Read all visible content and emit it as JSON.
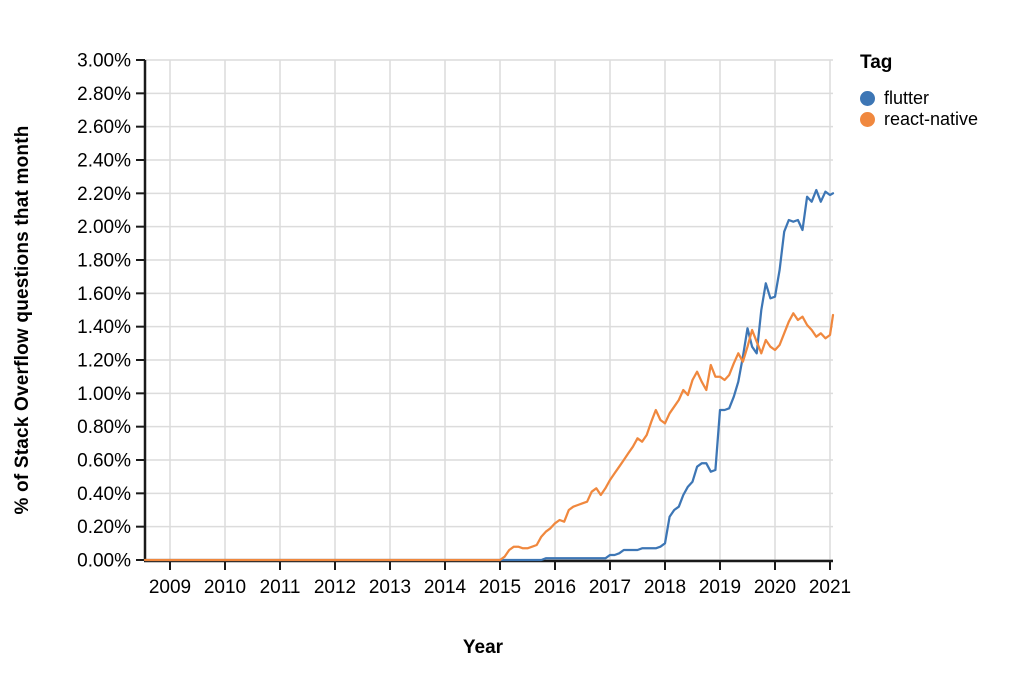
{
  "chart_data": {
    "type": "line",
    "xlabel": "Year",
    "ylabel": "% of Stack Overflow questions that month",
    "ylim": [
      0,
      3
    ],
    "grid": true,
    "x_tick_years": [
      "2009",
      "2010",
      "2011",
      "2012",
      "2013",
      "2014",
      "2015",
      "2016",
      "2017",
      "2018",
      "2019",
      "2020",
      "2021"
    ],
    "y_ticks": [
      "0.00%",
      "0.20%",
      "0.40%",
      "0.60%",
      "0.80%",
      "1.00%",
      "1.20%",
      "1.40%",
      "1.60%",
      "1.80%",
      "2.00%",
      "2.20%",
      "2.40%",
      "2.60%",
      "2.80%",
      "3.00%"
    ],
    "x_start_month": "2008-07",
    "x_months_per_point": 1,
    "legend": {
      "title": "Tag",
      "position": "right",
      "entries": [
        {
          "label": "flutter",
          "color": "#3d76b5"
        },
        {
          "label": "react-native",
          "color": "#f0883e"
        }
      ]
    },
    "colors": {
      "grid": "#dcdcdc",
      "axis": "#1a1a1a",
      "text": "#000000"
    },
    "series": [
      {
        "name": "flutter",
        "color": "#3d76b5",
        "start_month": "2008-07",
        "leading_zero_months": 88,
        "monthly_percent": [
          0.01,
          0.01,
          0.01,
          0.01,
          0.01,
          0.01,
          0.01,
          0.01,
          0.01,
          0.01,
          0.01,
          0.01,
          0.01,
          0.01,
          0.03,
          0.03,
          0.04,
          0.06,
          0.06,
          0.06,
          0.06,
          0.07,
          0.07,
          0.07,
          0.07,
          0.08,
          0.1,
          0.26,
          0.3,
          0.32,
          0.39,
          0.44,
          0.47,
          0.56,
          0.58,
          0.58,
          0.53,
          0.54,
          0.9,
          0.9,
          0.91,
          0.98,
          1.07,
          1.22,
          1.39,
          1.28,
          1.24,
          1.5,
          1.66,
          1.57,
          1.58,
          1.74,
          1.97,
          2.04,
          2.03,
          2.04,
          1.98,
          2.18,
          2.15,
          2.22,
          2.15,
          2.21,
          2.19,
          2.2
        ]
      },
      {
        "name": "react-native",
        "color": "#f0883e",
        "start_month": "2008-07",
        "leading_zero_months": 79,
        "monthly_percent": [
          0.02,
          0.06,
          0.08,
          0.08,
          0.07,
          0.07,
          0.08,
          0.09,
          0.14,
          0.17,
          0.19,
          0.22,
          0.24,
          0.23,
          0.3,
          0.32,
          0.33,
          0.34,
          0.35,
          0.41,
          0.43,
          0.39,
          0.43,
          0.48,
          0.52,
          0.56,
          0.6,
          0.64,
          0.68,
          0.73,
          0.71,
          0.75,
          0.83,
          0.9,
          0.84,
          0.82,
          0.88,
          0.92,
          0.96,
          1.02,
          0.99,
          1.08,
          1.13,
          1.07,
          1.02,
          1.17,
          1.1,
          1.1,
          1.08,
          1.11,
          1.18,
          1.24,
          1.19,
          1.28,
          1.38,
          1.31,
          1.24,
          1.32,
          1.28,
          1.26,
          1.29,
          1.36,
          1.43,
          1.48,
          1.44,
          1.46,
          1.41,
          1.38,
          1.34,
          1.36,
          1.33,
          1.35,
          1.47
        ]
      }
    ]
  }
}
